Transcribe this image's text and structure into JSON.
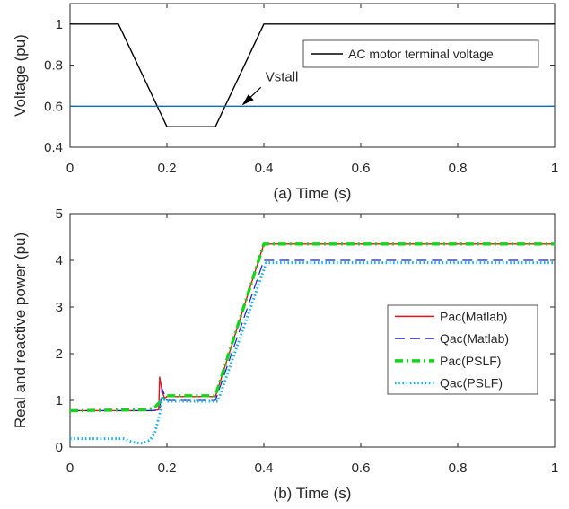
{
  "chart_data": [
    {
      "type": "line",
      "xlabel": "(a)   Time (s)",
      "ylabel": "Voltage (pu)",
      "xlim": [
        0,
        1
      ],
      "ylim": [
        0.4,
        1.1
      ],
      "xticks": [
        "0",
        "0.2",
        "0.4",
        "0.6",
        "0.8",
        "1"
      ],
      "yticks": [
        "0.4",
        "0.6",
        "0.8",
        "1"
      ],
      "grid": false,
      "legend_position": "top-right",
      "annotation": {
        "text": "Vstall",
        "x": 0.355,
        "y": 0.6
      },
      "series": [
        {
          "name": "AC motor terminal voltage",
          "color": "#000000",
          "dash": "solid",
          "points": [
            [
              0,
              1.0
            ],
            [
              0.1,
              1.0
            ],
            [
              0.2,
              0.5
            ],
            [
              0.3,
              0.5
            ],
            [
              0.4,
              1.0
            ],
            [
              1.0,
              1.0
            ]
          ]
        },
        {
          "color": "#0072BD",
          "dash": "solid",
          "points": [
            [
              0,
              0.6
            ],
            [
              1.0,
              0.6
            ]
          ]
        }
      ]
    },
    {
      "type": "line",
      "xlabel": "(b)   Time (s)",
      "ylabel": "Real and reactive power (pu)",
      "xlim": [
        0,
        1
      ],
      "ylim": [
        0,
        5
      ],
      "xticks": [
        "0",
        "0.2",
        "0.4",
        "0.6",
        "0.8",
        "1"
      ],
      "yticks": [
        "0",
        "1",
        "2",
        "3",
        "4",
        "5"
      ],
      "grid": false,
      "legend_position": "right",
      "series": [
        {
          "name": "Pac(Matlab)",
          "color": "#E8131B",
          "dash": "solid",
          "points": [
            [
              0,
              0.78
            ],
            [
              0.17,
              0.78
            ],
            [
              0.183,
              0.8
            ],
            [
              0.185,
              1.5
            ],
            [
              0.19,
              1.2
            ],
            [
              0.195,
              1.05
            ],
            [
              0.2,
              1.08
            ],
            [
              0.3,
              1.08
            ],
            [
              0.4,
              4.35
            ],
            [
              1.0,
              4.35
            ]
          ]
        },
        {
          "name": "Qac(Matlab)",
          "color": "#1A1AD0",
          "dash": "longdash",
          "points": [
            [
              0,
              0.78
            ],
            [
              0.17,
              0.78
            ],
            [
              0.185,
              0.8
            ],
            [
              0.19,
              1.25
            ],
            [
              0.2,
              1.0
            ],
            [
              0.3,
              1.0
            ],
            [
              0.4,
              4.0
            ],
            [
              1.0,
              4.0
            ]
          ]
        },
        {
          "name": "Pac(PSLF)",
          "color": "#13D61A",
          "dash": "dashdot",
          "points": [
            [
              0,
              0.78
            ],
            [
              0.16,
              0.8
            ],
            [
              0.175,
              0.85
            ],
            [
              0.19,
              1.02
            ],
            [
              0.2,
              1.1
            ],
            [
              0.3,
              1.1
            ],
            [
              0.4,
              4.35
            ],
            [
              1.0,
              4.35
            ]
          ]
        },
        {
          "name": "Qac(PSLF)",
          "color": "#18B0E8",
          "dash": "dotted",
          "points": [
            [
              0,
              0.18
            ],
            [
              0.11,
              0.18
            ],
            [
              0.12,
              0.14
            ],
            [
              0.135,
              0.09
            ],
            [
              0.15,
              0.08
            ],
            [
              0.165,
              0.15
            ],
            [
              0.175,
              0.3
            ],
            [
              0.185,
              0.7
            ],
            [
              0.19,
              1.05
            ],
            [
              0.2,
              0.98
            ],
            [
              0.305,
              0.98
            ],
            [
              0.405,
              3.95
            ],
            [
              1.0,
              3.95
            ]
          ]
        }
      ]
    }
  ]
}
